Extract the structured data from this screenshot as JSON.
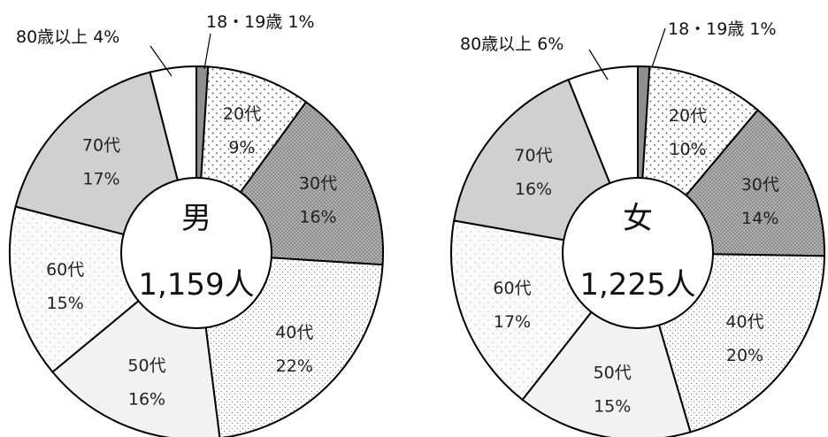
{
  "chart_data": [
    {
      "type": "pie",
      "center_title": "男",
      "center_count": "1,159人",
      "categories": [
        "18・19歳",
        "20代",
        "30代",
        "40代",
        "50代",
        "60代",
        "70代",
        "80歳以上"
      ],
      "values": [
        1,
        9,
        16,
        22,
        16,
        15,
        17,
        4
      ],
      "percent_labels": [
        "1%",
        "9%",
        "16%",
        "22%",
        "16%",
        "15%",
        "17%",
        "4%"
      ],
      "outside_labels": [
        "18・19歳 1%",
        "80歳以上 4%"
      ]
    },
    {
      "type": "pie",
      "center_title": "女",
      "center_count": "1,225人",
      "categories": [
        "18・19歳",
        "20代",
        "30代",
        "40代",
        "50代",
        "60代",
        "70代",
        "80歳以上"
      ],
      "values": [
        1,
        10,
        14,
        20,
        15,
        17,
        16,
        6
      ],
      "percent_labels": [
        "1%",
        "10%",
        "14%",
        "20%",
        "15%",
        "17%",
        "16%",
        "6%"
      ],
      "outside_labels": [
        "18・19歳 1%",
        "80歳以上 6%"
      ]
    }
  ],
  "fills": [
    "#8f8f8f",
    "dots-sparse",
    "dots-dense-dark",
    "dots-fine",
    "#f2f2f2",
    "sparkle-light",
    "#d0d0d0",
    "#ffffff"
  ]
}
